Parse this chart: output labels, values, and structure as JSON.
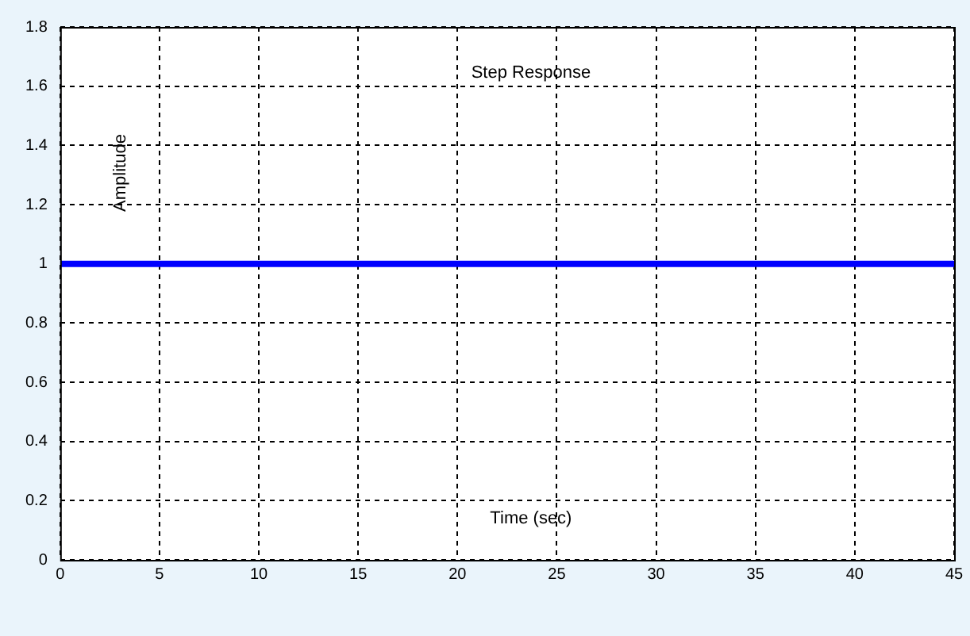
{
  "chart_data": {
    "type": "line",
    "title": "Step Response",
    "xlabel": "Time (sec)",
    "ylabel": "Amplitude",
    "x": [
      0,
      45
    ],
    "series": [
      {
        "color": "#0000ff",
        "values": [
          1,
          1
        ]
      }
    ],
    "xlim": [
      0,
      45
    ],
    "xticks": [
      0,
      5,
      10,
      15,
      20,
      25,
      30,
      35,
      40,
      45
    ],
    "ylim": [
      0,
      1.8
    ],
    "yticks": [
      0,
      0.2,
      0.4,
      0.6,
      0.8,
      1,
      1.2,
      1.4,
      1.6,
      1.8
    ],
    "grid": true,
    "legend": false,
    "marker": "none",
    "line_style": "solid"
  }
}
